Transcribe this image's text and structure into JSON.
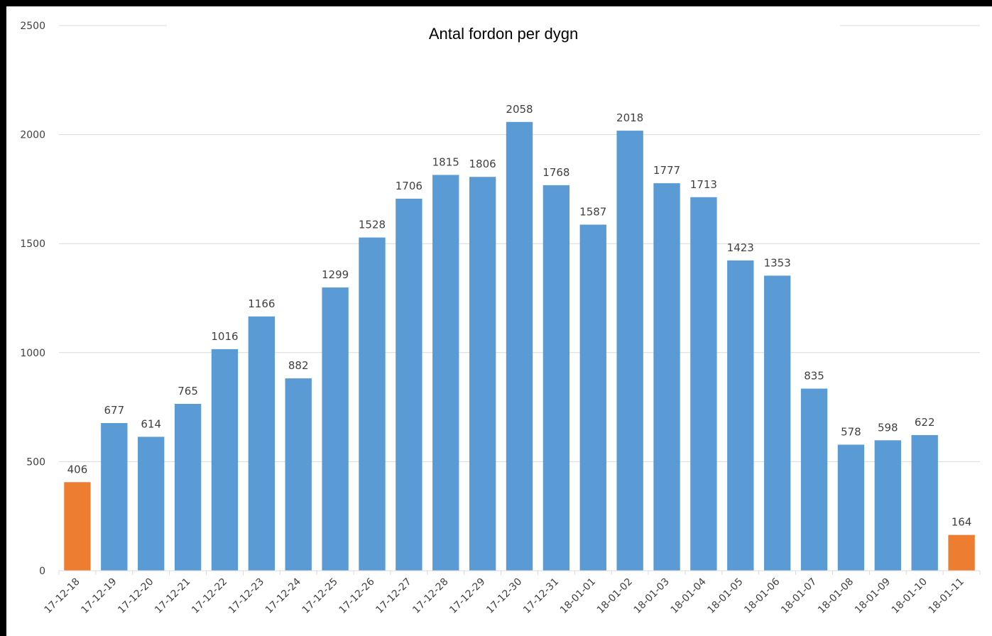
{
  "chart_data": {
    "type": "bar",
    "title": "Antal fordon per dygn",
    "xlabel": "",
    "ylabel": "",
    "ylim": [
      0,
      2500
    ],
    "yticks": [
      0,
      500,
      1000,
      1500,
      2000,
      2500
    ],
    "grid": true,
    "legend": "none",
    "categories": [
      "17-12-18",
      "17-12-19",
      "17-12-20",
      "17-12-21",
      "17-12-22",
      "17-12-23",
      "17-12-24",
      "17-12-25",
      "17-12-26",
      "17-12-27",
      "17-12-28",
      "17-12-29",
      "17-12-30",
      "17-12-31",
      "18-01-01",
      "18-01-02",
      "18-01-03",
      "18-01-04",
      "18-01-05",
      "18-01-06",
      "18-01-07",
      "18-01-08",
      "18-01-09",
      "18-01-10",
      "18-01-11"
    ],
    "values": [
      406,
      677,
      614,
      765,
      1016,
      1166,
      882,
      1299,
      1528,
      1706,
      1815,
      1806,
      2058,
      1768,
      1587,
      2018,
      1777,
      1713,
      1423,
      1353,
      835,
      578,
      598,
      622,
      164
    ],
    "colors": {
      "default": "#5B9BD5",
      "partial_day": "#ED7D31",
      "grid": "#D9D9D9",
      "text": "#404040"
    },
    "highlighted_categories": [
      "17-12-18",
      "18-01-11"
    ]
  }
}
